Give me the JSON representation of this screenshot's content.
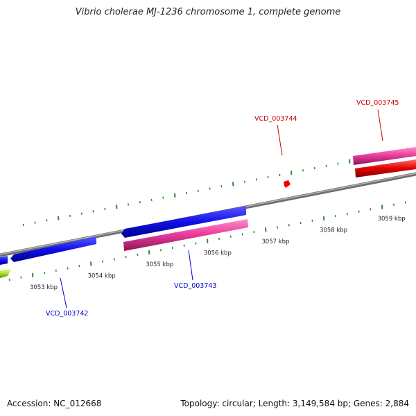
{
  "title": "Vibrio cholerae MJ-1236 chromosome 1, complete genome",
  "footer": {
    "accession": "Accession: NC_012668",
    "summary": "Topology: circular; Length: 3,149,584 bp; Genes: 2,884"
  },
  "colors": {
    "backbone": "#8c8c8c",
    "tick": "#2e8b2e",
    "forward_gene": "#0000e0",
    "reverse_gene": "#e8389a",
    "red_gene": "#e00000",
    "lime_gene": "#a6e22e",
    "red_label": "#cc0000",
    "blue_label": "#0000cc",
    "marker": "#ee0000"
  },
  "scale": {
    "unit": "kbp",
    "major_ticks_kbp": [
      3053,
      3054,
      3055,
      3056,
      3057,
      3058,
      3059
    ]
  },
  "gene_labels": [
    {
      "id": "VCD_003744",
      "color": "red"
    },
    {
      "id": "VCD_003745",
      "color": "red"
    },
    {
      "id": "VCD_003743",
      "color": "blue"
    },
    {
      "id": "VCD_003742",
      "color": "blue"
    }
  ]
}
